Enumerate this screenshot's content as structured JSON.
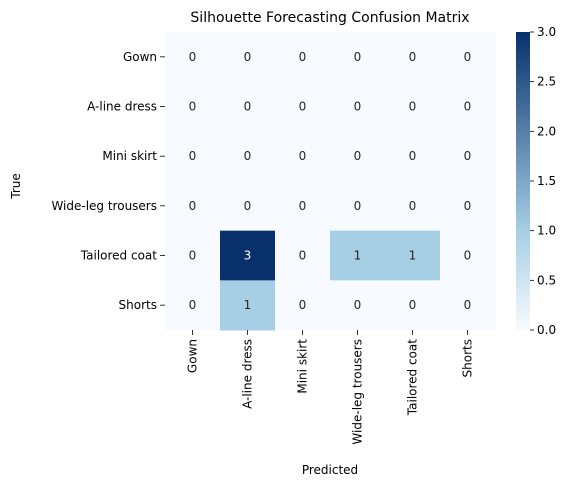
{
  "chart_data": {
    "type": "heatmap",
    "title": "Silhouette Forecasting Confusion Matrix",
    "xlabel": "Predicted",
    "ylabel": "True",
    "x_categories": [
      "Gown",
      "A-line dress",
      "Mini skirt",
      "Wide-leg trousers",
      "Tailored coat",
      "Shorts"
    ],
    "y_categories": [
      "Gown",
      "A-line dress",
      "Mini skirt",
      "Wide-leg trousers",
      "Tailored coat",
      "Shorts"
    ],
    "values": [
      [
        0,
        0,
        0,
        0,
        0,
        0
      ],
      [
        0,
        0,
        0,
        0,
        0,
        0
      ],
      [
        0,
        0,
        0,
        0,
        0,
        0
      ],
      [
        0,
        0,
        0,
        0,
        0,
        0
      ],
      [
        0,
        3,
        0,
        1,
        1,
        0
      ],
      [
        0,
        1,
        0,
        0,
        0,
        0
      ]
    ],
    "colormap": "Blues",
    "color_low": "#f7fbff",
    "color_mid": "#a6cee4",
    "color_high": "#08306b",
    "colorbar": {
      "min": 0,
      "max": 3,
      "ticks": [
        "0.0",
        "0.5",
        "1.0",
        "1.5",
        "2.0",
        "2.5",
        "3.0"
      ]
    },
    "grid": false
  }
}
